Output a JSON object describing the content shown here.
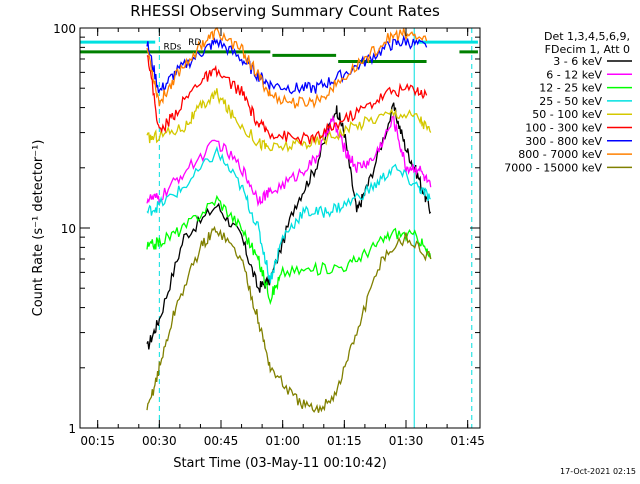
{
  "chart_data": {
    "type": "line",
    "title": "RHESSI Observing Summary Count Rates",
    "xlabel": "Start Time (03-May-11 00:10:42)",
    "ylabel": "Count Rate (s⁻¹ detector⁻¹)",
    "x_scale": "time",
    "y_scale": "log",
    "xlim": [
      "00:10:42",
      "01:48:00"
    ],
    "ylim": [
      1,
      100
    ],
    "x_ticks": [
      "00:15",
      "00:30",
      "00:45",
      "01:00",
      "01:15",
      "01:30",
      "01:45"
    ],
    "y_ticks": [
      1,
      10,
      100
    ],
    "grid": false,
    "legend_position": "right",
    "legend_header": [
      "Det 1,3,4,5,6,9,",
      "FDecim 1, Att 0"
    ],
    "footer_date": "17-Oct-2021 02:15",
    "annotations": [
      {
        "text": "RDs",
        "x": "00:31",
        "y": 78
      },
      {
        "text": "RD",
        "x": "00:37",
        "y": 82
      }
    ],
    "vertical_markers": [
      {
        "x": "00:10:42",
        "color": "#00e0e0",
        "style": "solid"
      },
      {
        "x": "00:30:00",
        "color": "#00e0e0",
        "style": "dashed"
      },
      {
        "x": "01:32:00",
        "color": "#00e0e0",
        "style": "solid"
      },
      {
        "x": "01:46:00",
        "color": "#00e0e0",
        "style": "dashed"
      }
    ],
    "flag_bars": [
      {
        "color": "#00e0e0",
        "segments": [
          [
            "00:10:42",
            "00:29:00",
            85
          ],
          [
            "01:33:00",
            "01:47:30",
            85
          ]
        ]
      },
      {
        "color": "#008000",
        "segments": [
          [
            "00:10:42",
            "00:40:00",
            76
          ],
          [
            "00:40:00",
            "00:57:00",
            76
          ],
          [
            "00:57:30",
            "01:13:00",
            73
          ],
          [
            "01:13:30",
            "01:35:00",
            68
          ],
          [
            "01:43:00",
            "01:47:30",
            76
          ]
        ]
      }
    ],
    "series": [
      {
        "name": "3 - 6 keV",
        "color": "#000000",
        "points": [
          [
            "00:27",
            2.5
          ],
          [
            "00:30",
            3.5
          ],
          [
            "00:36",
            9
          ],
          [
            "00:44",
            13
          ],
          [
            "00:50",
            9
          ],
          [
            "00:54",
            5
          ],
          [
            "00:57",
            5.5
          ],
          [
            "01:03",
            13
          ],
          [
            "01:08",
            20
          ],
          [
            "01:13",
            40
          ],
          [
            "01:15",
            30
          ],
          [
            "01:18",
            12
          ],
          [
            "01:21",
            17
          ],
          [
            "01:27",
            40
          ],
          [
            "01:30",
            25
          ],
          [
            "01:33",
            18
          ],
          [
            "01:36",
            12
          ]
        ]
      },
      {
        "name": "6 - 12 keV",
        "color": "#ff00ff",
        "points": [
          [
            "00:27",
            14
          ],
          [
            "00:30",
            14
          ],
          [
            "00:36",
            19
          ],
          [
            "00:44",
            27
          ],
          [
            "00:50",
            20
          ],
          [
            "00:54",
            14
          ],
          [
            "00:57",
            15
          ],
          [
            "01:03",
            18
          ],
          [
            "01:08",
            22
          ],
          [
            "01:12",
            35
          ],
          [
            "01:15",
            25
          ],
          [
            "01:18",
            20
          ],
          [
            "01:22",
            22
          ],
          [
            "01:27",
            35
          ],
          [
            "01:30",
            20
          ],
          [
            "01:33",
            20
          ],
          [
            "01:36",
            16
          ]
        ]
      },
      {
        "name": "12 - 25 keV",
        "color": "#00ff00",
        "points": [
          [
            "00:27",
            8
          ],
          [
            "00:30",
            8.5
          ],
          [
            "00:36",
            10
          ],
          [
            "00:44",
            14
          ],
          [
            "00:50",
            10
          ],
          [
            "00:54",
            7
          ],
          [
            "00:57",
            4.5
          ],
          [
            "01:00",
            6
          ],
          [
            "01:08",
            6.2
          ],
          [
            "01:16",
            6.5
          ],
          [
            "01:22",
            8
          ],
          [
            "01:27",
            9.5
          ],
          [
            "01:33",
            9
          ],
          [
            "01:36",
            7
          ]
        ]
      },
      {
        "name": "25 - 50 keV",
        "color": "#00e0e0",
        "points": [
          [
            "00:27",
            12
          ],
          [
            "00:30",
            13
          ],
          [
            "00:36",
            16
          ],
          [
            "00:44",
            24
          ],
          [
            "00:50",
            16
          ],
          [
            "00:54",
            10
          ],
          [
            "00:57",
            5.5
          ],
          [
            "01:00",
            9
          ],
          [
            "01:05",
            12
          ],
          [
            "01:10",
            12
          ],
          [
            "01:15",
            13
          ],
          [
            "01:22",
            16
          ],
          [
            "01:27",
            20
          ],
          [
            "01:33",
            16
          ],
          [
            "01:36",
            14
          ]
        ]
      },
      {
        "name": "50 - 100 keV",
        "color": "#d4c800",
        "points": [
          [
            "00:27",
            28
          ],
          [
            "00:30",
            29
          ],
          [
            "00:36",
            32
          ],
          [
            "00:40",
            40
          ],
          [
            "00:44",
            47
          ],
          [
            "00:48",
            36
          ],
          [
            "00:54",
            27
          ],
          [
            "00:57",
            25
          ],
          [
            "01:03",
            26
          ],
          [
            "01:08",
            27
          ],
          [
            "01:14",
            30
          ],
          [
            "01:20",
            34
          ],
          [
            "01:27",
            38
          ],
          [
            "01:33",
            36
          ],
          [
            "01:36",
            30
          ]
        ]
      },
      {
        "name": "100 - 300 keV",
        "color": "#ff0000",
        "points": [
          [
            "00:27",
            78
          ],
          [
            "00:30",
            30
          ],
          [
            "00:34",
            38
          ],
          [
            "00:40",
            55
          ],
          [
            "00:44",
            60
          ],
          [
            "00:50",
            48
          ],
          [
            "00:54",
            33
          ],
          [
            "00:57",
            30
          ],
          [
            "01:03",
            28
          ],
          [
            "01:08",
            28
          ],
          [
            "01:13",
            33
          ],
          [
            "01:20",
            40
          ],
          [
            "01:26",
            48
          ],
          [
            "01:32",
            50
          ],
          [
            "01:35",
            46
          ]
        ]
      },
      {
        "name": "300 - 800 keV",
        "color": "#0000ff",
        "points": [
          [
            "00:27",
            84
          ],
          [
            "00:30",
            48
          ],
          [
            "00:34",
            60
          ],
          [
            "00:40",
            75
          ],
          [
            "00:44",
            86
          ],
          [
            "00:50",
            70
          ],
          [
            "00:54",
            58
          ],
          [
            "00:57",
            52
          ],
          [
            "01:03",
            50
          ],
          [
            "01:08",
            50
          ],
          [
            "01:13",
            56
          ],
          [
            "01:20",
            68
          ],
          [
            "01:26",
            82
          ],
          [
            "01:30",
            86
          ],
          [
            "01:35",
            80
          ]
        ]
      },
      {
        "name": "800 - 7000 keV",
        "color": "#ff8000",
        "points": [
          [
            "00:27",
            80
          ],
          [
            "00:30",
            42
          ],
          [
            "00:34",
            58
          ],
          [
            "00:40",
            82
          ],
          [
            "00:44",
            95
          ],
          [
            "00:50",
            78
          ],
          [
            "00:54",
            58
          ],
          [
            "00:57",
            46
          ],
          [
            "01:03",
            42
          ],
          [
            "01:08",
            43
          ],
          [
            "01:13",
            52
          ],
          [
            "01:20",
            70
          ],
          [
            "01:26",
            90
          ],
          [
            "01:30",
            94
          ],
          [
            "01:35",
            86
          ]
        ]
      },
      {
        "name": "7000 - 15000 keV",
        "color": "#808000",
        "points": [
          [
            "00:27",
            1.2
          ],
          [
            "00:30",
            2
          ],
          [
            "00:34",
            4
          ],
          [
            "00:40",
            8
          ],
          [
            "00:44",
            10
          ],
          [
            "00:50",
            7
          ],
          [
            "00:54",
            3.5
          ],
          [
            "00:57",
            2
          ],
          [
            "01:03",
            1.4
          ],
          [
            "01:08",
            1.2
          ],
          [
            "01:13",
            1.5
          ],
          [
            "01:18",
            3
          ],
          [
            "01:24",
            7
          ],
          [
            "01:30",
            9
          ],
          [
            "01:36",
            7
          ]
        ]
      }
    ]
  }
}
